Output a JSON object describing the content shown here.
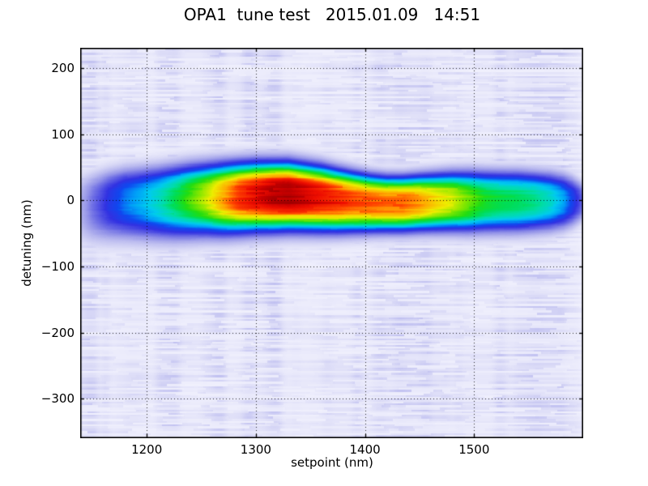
{
  "figure": {
    "background": "#ffffff",
    "border_color": "#000000"
  },
  "chart_data": {
    "type": "heatmap",
    "title": "OPA1  tune test   2015.01.09   14:51",
    "xlabel": "setpoint (nm)",
    "ylabel": "detuning (nm)",
    "xlim": [
      1139,
      1600
    ],
    "ylim": [
      -360,
      231
    ],
    "xticks": [
      1200,
      1300,
      1400,
      1500
    ],
    "yticks": [
      200,
      100,
      0,
      -100,
      -200,
      -300
    ],
    "grid": {
      "on": true,
      "style": "dotted",
      "color": "#000000"
    },
    "legend": {
      "on": false
    },
    "colormap": [
      [
        0.0,
        "#f4f4fe"
      ],
      [
        0.06,
        "#e9e9fb"
      ],
      [
        0.12,
        "#dadaf7"
      ],
      [
        0.2,
        "#bcbcf0"
      ],
      [
        0.28,
        "#9595e9"
      ],
      [
        0.35,
        "#6464e4"
      ],
      [
        0.42,
        "#3232e2"
      ],
      [
        0.48,
        "#1048f0"
      ],
      [
        0.53,
        "#00a0f8"
      ],
      [
        0.57,
        "#00ccee"
      ],
      [
        0.62,
        "#00ddaa"
      ],
      [
        0.66,
        "#00dd55"
      ],
      [
        0.7,
        "#22dd11"
      ],
      [
        0.75,
        "#88e800"
      ],
      [
        0.8,
        "#eeee00"
      ],
      [
        0.85,
        "#ffaa00"
      ],
      [
        0.89,
        "#ff4400"
      ],
      [
        0.93,
        "#ee0e00"
      ],
      [
        0.96,
        "#c40000"
      ],
      [
        1.0,
        "#8a0000"
      ]
    ],
    "band_profile_columns": [
      "setpoint_nm",
      "peak_intensity_0to1",
      "center_detuning_nm",
      "sigma_up_nm",
      "sigma_down_nm"
    ],
    "band_profile": [
      [
        1139,
        0.22,
        -5,
        38,
        52
      ],
      [
        1150,
        0.33,
        -3,
        38,
        52
      ],
      [
        1165,
        0.44,
        0,
        39,
        52
      ],
      [
        1180,
        0.51,
        2,
        40,
        52
      ],
      [
        1195,
        0.55,
        2,
        41,
        52
      ],
      [
        1210,
        0.6,
        2,
        42,
        52
      ],
      [
        1225,
        0.66,
        3,
        43,
        52
      ],
      [
        1240,
        0.72,
        4,
        44,
        51
      ],
      [
        1255,
        0.78,
        5,
        44,
        50
      ],
      [
        1270,
        0.85,
        6,
        44,
        50
      ],
      [
        1285,
        0.91,
        7,
        44,
        49
      ],
      [
        1300,
        0.94,
        8,
        44,
        48
      ],
      [
        1315,
        0.97,
        9,
        43,
        48
      ],
      [
        1330,
        0.98,
        9,
        43,
        47
      ],
      [
        1345,
        0.96,
        7,
        42,
        46
      ],
      [
        1360,
        0.94,
        5,
        41,
        45
      ],
      [
        1375,
        0.92,
        2,
        39,
        43
      ],
      [
        1390,
        0.9,
        0,
        37,
        41
      ],
      [
        1405,
        0.89,
        -2,
        35,
        39
      ],
      [
        1420,
        0.88,
        -3,
        34,
        38
      ],
      [
        1435,
        0.88,
        -3,
        34,
        38
      ],
      [
        1450,
        0.86,
        -2,
        35,
        38
      ],
      [
        1465,
        0.82,
        -1,
        36,
        39
      ],
      [
        1480,
        0.79,
        0,
        37,
        40
      ],
      [
        1495,
        0.74,
        0,
        38,
        41
      ],
      [
        1510,
        0.69,
        0,
        38,
        41
      ],
      [
        1525,
        0.67,
        0,
        38,
        41
      ],
      [
        1540,
        0.66,
        0,
        38,
        41
      ],
      [
        1555,
        0.64,
        0,
        37,
        40
      ],
      [
        1570,
        0.6,
        0,
        36,
        39
      ],
      [
        1582,
        0.54,
        0,
        34,
        37
      ],
      [
        1590,
        0.47,
        0,
        31,
        34
      ],
      [
        1596,
        0.4,
        0,
        27,
        30
      ],
      [
        1600,
        0.33,
        0,
        24,
        27
      ]
    ],
    "band_shape_exponent": 3,
    "noise": {
      "base": 0.02,
      "amplitude": 0.13,
      "seed": 1234,
      "texture": "horizontal-streaks"
    }
  }
}
